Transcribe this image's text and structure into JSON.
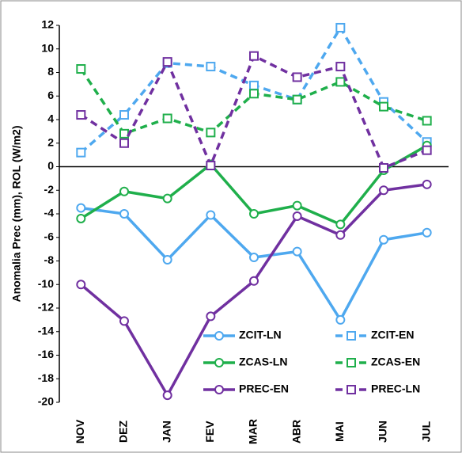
{
  "chart_data": {
    "type": "line",
    "y_label": "Anomalia Prec (mm), ROL (W/m2)",
    "categories": [
      "NOV",
      "DEZ",
      "JAN",
      "FEV",
      "MAR",
      "ABR",
      "MAI",
      "JUN",
      "JUL"
    ],
    "ylim": [
      -20,
      12
    ],
    "yticks": [
      -20,
      -18,
      -16,
      -14,
      -12,
      -10,
      -8,
      -6,
      -4,
      -2,
      0,
      2,
      4,
      6,
      8,
      10,
      12
    ],
    "legend": "lower right",
    "series": [
      {
        "name": "ZCIT-LN",
        "color": "#4ea8ef",
        "dashed": false,
        "marker": "circle",
        "values": [
          -3.5,
          -4.0,
          -7.9,
          -4.1,
          -7.7,
          -7.2,
          -13.0,
          -6.2,
          -5.6
        ]
      },
      {
        "name": "ZCIT-EN",
        "color": "#4ea8ef",
        "dashed": true,
        "marker": "square",
        "values": [
          1.2,
          4.4,
          8.8,
          8.5,
          6.9,
          5.7,
          11.8,
          5.5,
          2.1
        ]
      },
      {
        "name": "ZCAS-LN",
        "color": "#1faf4b",
        "dashed": false,
        "marker": "circle",
        "values": [
          -4.4,
          -2.1,
          -2.7,
          0.2,
          -4.0,
          -3.3,
          -4.9,
          -0.3,
          1.8
        ]
      },
      {
        "name": "ZCAS-EN",
        "color": "#1faf4b",
        "dashed": true,
        "marker": "square",
        "values": [
          8.3,
          2.8,
          4.1,
          2.9,
          6.2,
          5.7,
          7.2,
          5.1,
          3.9
        ]
      },
      {
        "name": "PREC-EN",
        "color": "#7030a0",
        "dashed": false,
        "marker": "circle",
        "values": [
          -10.0,
          -13.1,
          -19.4,
          -12.7,
          -9.7,
          -4.2,
          -5.8,
          -2.0,
          -1.5
        ]
      },
      {
        "name": "PREC-LN",
        "color": "#7030a0",
        "dashed": true,
        "marker": "square",
        "values": [
          4.4,
          2.0,
          8.9,
          0.1,
          9.4,
          7.6,
          8.5,
          -0.1,
          1.4
        ]
      }
    ]
  }
}
